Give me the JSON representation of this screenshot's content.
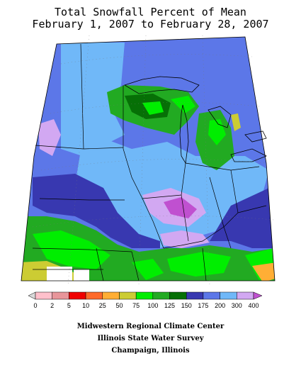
{
  "title": {
    "line1": "Total Snowfall Percent of Mean",
    "line2": "February 1, 2007 to February 28, 2007"
  },
  "legend": {
    "labels": [
      "0",
      "2",
      "5",
      "10",
      "25",
      "50",
      "75",
      "100",
      "125",
      "150",
      "175",
      "200",
      "300",
      "400"
    ],
    "colors": [
      "#ffc0cb",
      "#e8959a",
      "#f00000",
      "#ff6a2a",
      "#ffae35",
      "#cccc33",
      "#00ee00",
      "#22aa22",
      "#067006",
      "#3838b0",
      "#5c77e8",
      "#70b8f8",
      "#d2a8f2",
      "#c050d0"
    ]
  },
  "credits": {
    "line1": "Midwestern Regional Climate Center",
    "line2": "Illinois State Water Survey",
    "line3": "Champaign, Illinois"
  }
}
